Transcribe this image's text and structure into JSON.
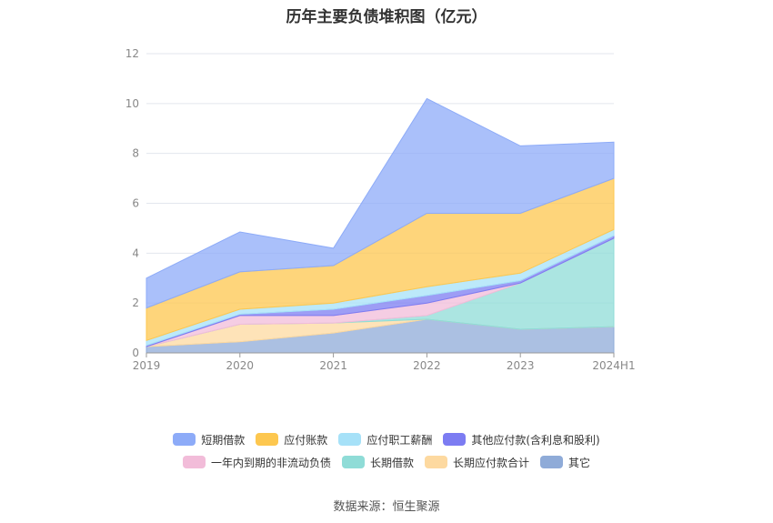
{
  "chart_data": {
    "type": "area",
    "stacked": true,
    "title": "历年主要负债堆积图（亿元）",
    "xlabel": "",
    "ylabel": "",
    "categories": [
      "2019",
      "2020",
      "2021",
      "2022",
      "2023",
      "2024H1"
    ],
    "ylim": [
      0,
      12
    ],
    "yticks": [
      0,
      2,
      4,
      6,
      8,
      10,
      12
    ],
    "grid": true,
    "legend_position": "bottom",
    "series": [
      {
        "name": "其它",
        "color": "#8fabd8",
        "values": [
          0.25,
          0.45,
          0.8,
          1.35,
          0.95,
          1.05
        ]
      },
      {
        "name": "长期应付款合计",
        "color": "#fdd9a0",
        "values": [
          0.0,
          0.7,
          0.4,
          0.0,
          0.0,
          0.0
        ]
      },
      {
        "name": "长期借款",
        "color": "#8fdcd7",
        "values": [
          0.0,
          0.0,
          0.0,
          0.15,
          1.85,
          3.55
        ]
      },
      {
        "name": "一年内到期的非流动负债",
        "color": "#f2bcd9",
        "values": [
          0.0,
          0.35,
          0.3,
          0.5,
          0.0,
          0.0
        ]
      },
      {
        "name": "其他应付款(含利息和股利)",
        "color": "#7c7cf2",
        "values": [
          0.05,
          0.05,
          0.25,
          0.3,
          0.1,
          0.1
        ]
      },
      {
        "name": "应付职工薪酬",
        "color": "#a6e1f8",
        "values": [
          0.2,
          0.2,
          0.25,
          0.35,
          0.3,
          0.25
        ]
      },
      {
        "name": "应付账款",
        "color": "#fdc74f",
        "values": [
          1.3,
          1.5,
          1.5,
          2.95,
          2.4,
          2.05
        ]
      },
      {
        "name": "短期借款",
        "color": "#8dabf8",
        "values": [
          1.2,
          1.6,
          0.7,
          4.6,
          2.7,
          1.45
        ]
      }
    ]
  },
  "legend": {
    "row1": [
      "短期借款",
      "应付账款",
      "应付职工薪酬",
      "其他应付款(含利息和股利)"
    ],
    "row2": [
      "一年内到期的非流动负债",
      "长期借款",
      "长期应付款合计",
      "其它"
    ]
  },
  "source_text": "数据来源：恒生聚源"
}
